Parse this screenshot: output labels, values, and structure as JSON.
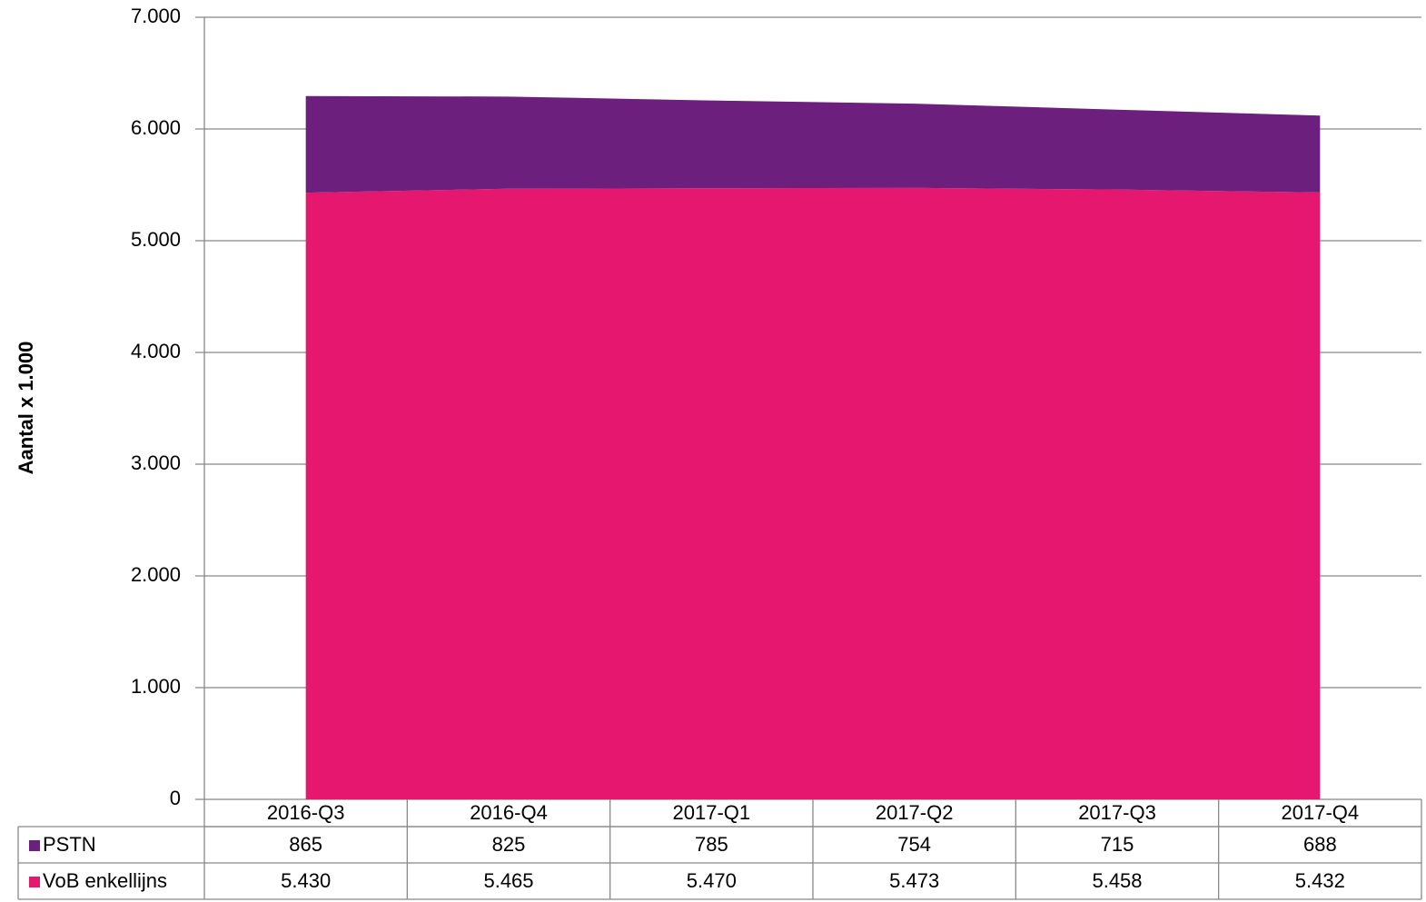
{
  "chart_data": {
    "type": "stacked_area",
    "y_label": "Aantal x 1.000",
    "categories": [
      "2016-Q3",
      "2016-Q4",
      "2017-Q1",
      "2017-Q2",
      "2017-Q3",
      "2017-Q4"
    ],
    "series": [
      {
        "name": "PSTN",
        "color": "#6d1f7e",
        "values": [
          865,
          825,
          785,
          754,
          715,
          688
        ]
      },
      {
        "name": "VoB enkellijns",
        "color": "#e5176e",
        "values": [
          5430,
          5465,
          5470,
          5473,
          5458,
          5432
        ],
        "value_labels": [
          "5.430",
          "5.465",
          "5.470",
          "5.473",
          "5.458",
          "5.432"
        ]
      }
    ],
    "ylim": [
      0,
      7000
    ],
    "yticks": [
      0,
      {
        "value": 1000,
        "label": "1.000"
      },
      {
        "value": 2000,
        "label": "2.000"
      },
      {
        "value": 3000,
        "label": "3.000"
      },
      {
        "value": 4000,
        "label": "4.000"
      },
      {
        "value": 5000,
        "label": "5.000"
      },
      {
        "value": 6000,
        "label": "6.000"
      },
      {
        "value": 7000,
        "label": "7.000"
      }
    ],
    "grid": true,
    "data_table": true
  }
}
